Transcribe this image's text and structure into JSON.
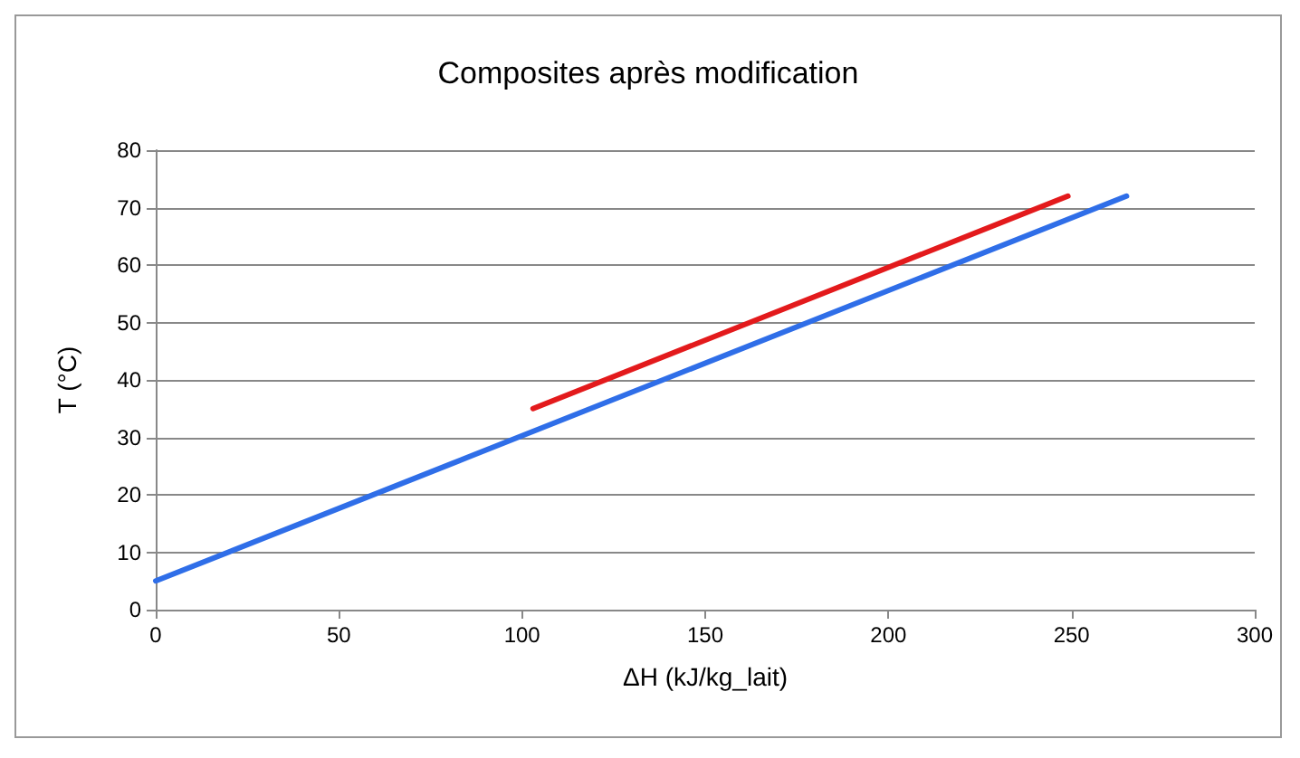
{
  "chart_data": {
    "type": "line",
    "title": "Composites après modification",
    "xlabel": "ΔH (kJ/kg_lait)",
    "ylabel": "T (°C)",
    "series": [
      {
        "color": "#2f6ee8",
        "x": [
          0,
          265
        ],
        "values": [
          5,
          72
        ]
      },
      {
        "color": "#e31a1c",
        "x": [
          103,
          249
        ],
        "values": [
          35,
          72
        ]
      }
    ],
    "xlim": [
      0,
      300
    ],
    "xticks": [
      0,
      50,
      100,
      150,
      200,
      250,
      300
    ],
    "ylim": [
      0,
      80
    ],
    "yticks": [
      0,
      10,
      20,
      30,
      40,
      50,
      60,
      70,
      80
    ],
    "grid": "y",
    "marker": "none",
    "line_style": "solid"
  }
}
